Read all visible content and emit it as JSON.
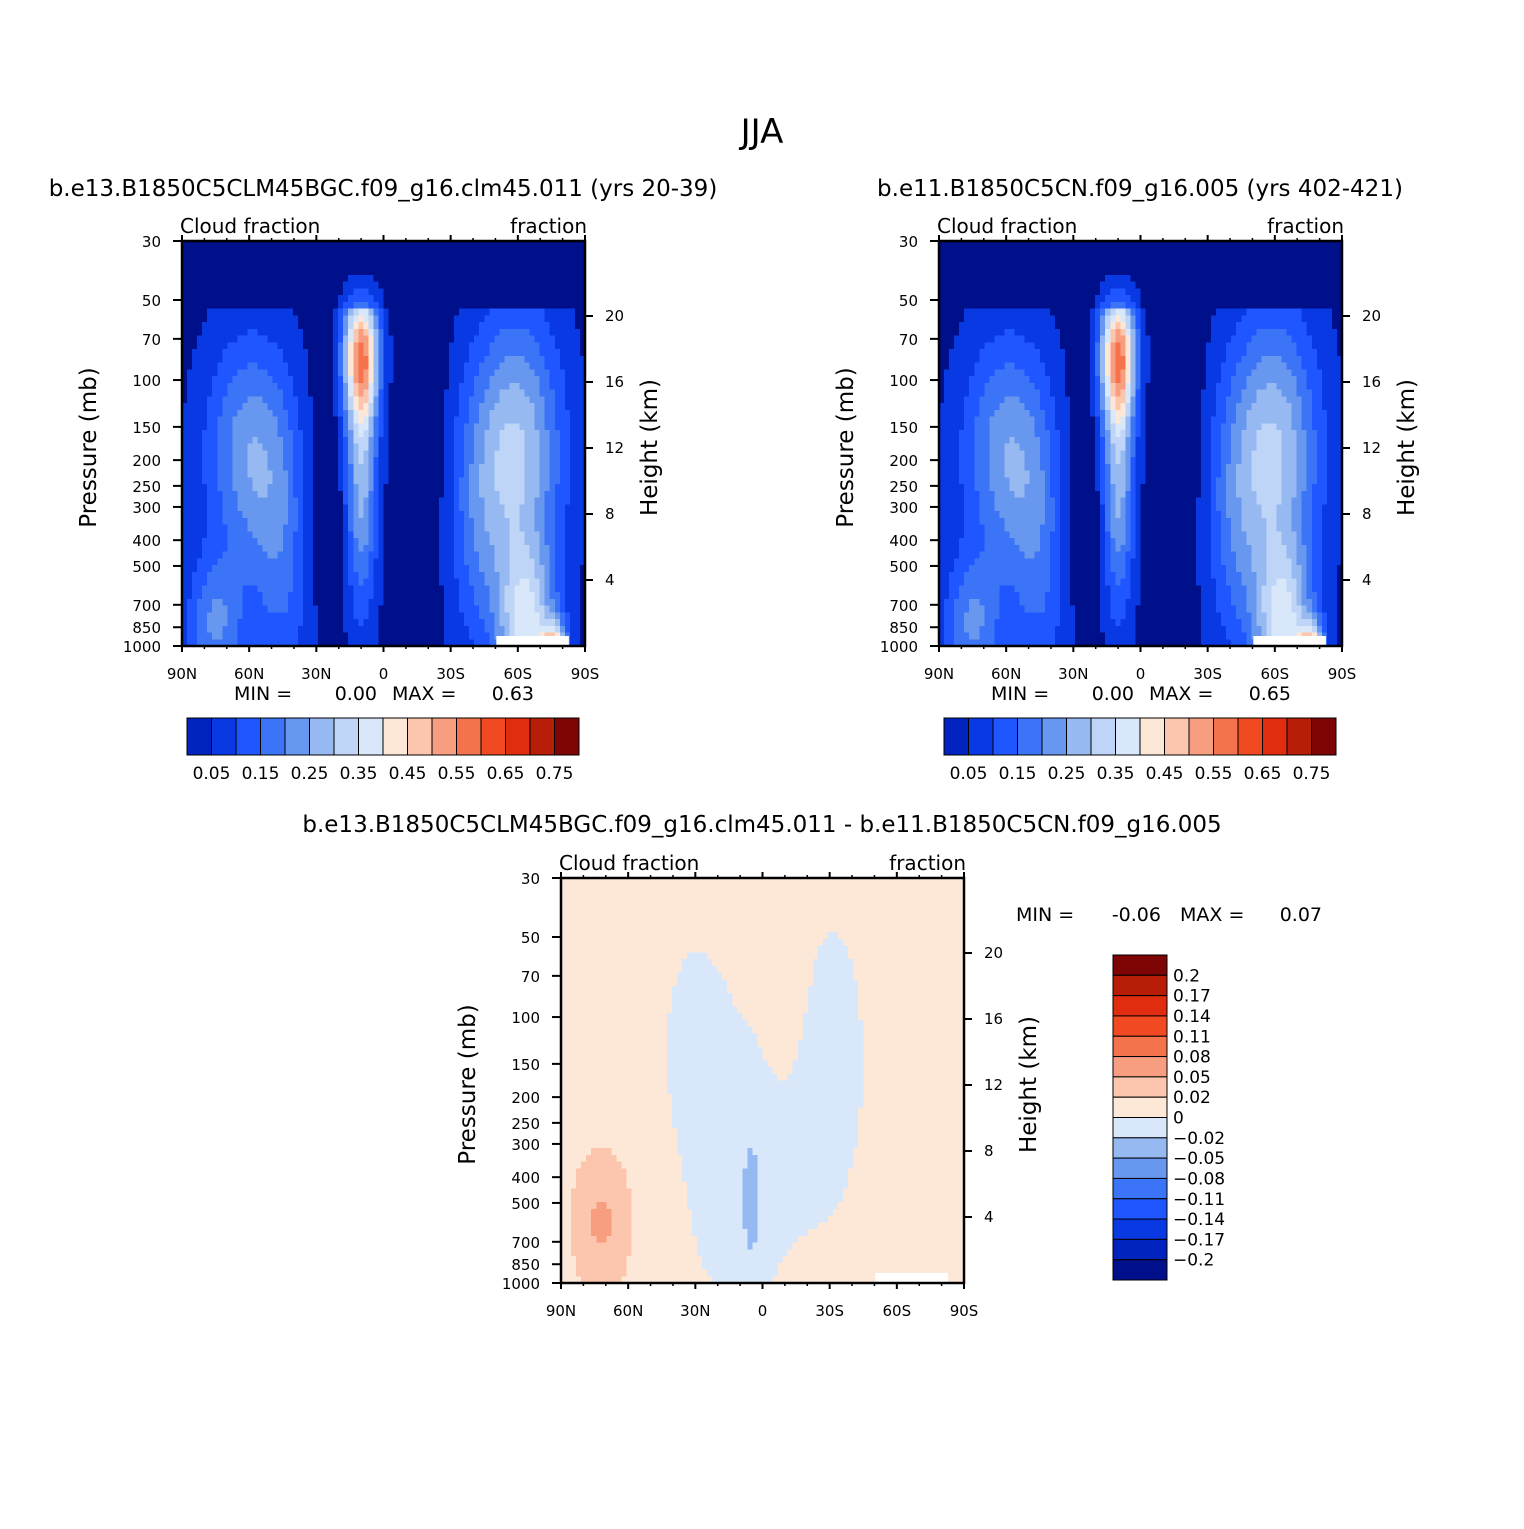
{
  "figure_title": "JJA",
  "colors": {
    "abs_scale": [
      "#000f8a",
      "#0024bd",
      "#0839e3",
      "#1f56ff",
      "#3b74f7",
      "#6897ef",
      "#97b9f2",
      "#bed5f7",
      "#d8e8fa",
      "#fde8d8",
      "#fbc6ad",
      "#f79e80",
      "#f5734c",
      "#f14a22",
      "#e02d0f",
      "#b81d08",
      "#7d0505"
    ],
    "diff_scale": [
      "#000f8a",
      "#0024bd",
      "#0839e3",
      "#1f56ff",
      "#3b74f7",
      "#6897ef",
      "#97b9f2",
      "#d8e8fa",
      "#fde8d8",
      "#fbc6ad",
      "#f79e80",
      "#f5734c",
      "#f14a22",
      "#e02d0f",
      "#b81d08",
      "#7d0505"
    ]
  },
  "chart_data": [
    {
      "type": "heatmap",
      "title": "b.e13.B1850C5CLM45BGC.f09_g16.clm45.011 (yrs 20-39)",
      "left_string": "Cloud  fraction",
      "right_string": "fraction",
      "ylabel": "Pressure  (mb)",
      "y2label": "Height  (km)",
      "x_ticks": [
        "90N",
        "60N",
        "30N",
        "0",
        "30S",
        "60S",
        "90S"
      ],
      "y_ticks": [
        "30",
        "50",
        "70",
        "100",
        "150",
        "200",
        "250",
        "300",
        "400",
        "500",
        "700",
        "850",
        "1000"
      ],
      "y2_ticks": [
        "20",
        "16",
        "12",
        "8",
        "4"
      ],
      "min_label": "MIN  =",
      "min_value": "0.00",
      "max_label": "MAX  =",
      "max_value": "0.63",
      "colorbar_labels": [
        "0.05",
        "0.15",
        "0.25",
        "0.35",
        "0.45",
        "0.55",
        "0.65",
        "0.75"
      ]
    },
    {
      "type": "heatmap",
      "title": "b.e11.B1850C5CN.f09_g16.005 (yrs 402-421)",
      "left_string": "Cloud  fraction",
      "right_string": "fraction",
      "ylabel": "Pressure  (mb)",
      "y2label": "Height  (km)",
      "x_ticks": [
        "90N",
        "60N",
        "30N",
        "0",
        "30S",
        "60S",
        "90S"
      ],
      "y_ticks": [
        "30",
        "50",
        "70",
        "100",
        "150",
        "200",
        "250",
        "300",
        "400",
        "500",
        "700",
        "850",
        "1000"
      ],
      "y2_ticks": [
        "20",
        "16",
        "12",
        "8",
        "4"
      ],
      "min_label": "MIN  =",
      "min_value": "0.00",
      "max_label": "MAX  =",
      "max_value": "0.65",
      "colorbar_labels": [
        "0.05",
        "0.15",
        "0.25",
        "0.35",
        "0.45",
        "0.55",
        "0.65",
        "0.75"
      ]
    },
    {
      "type": "heatmap",
      "title": "b.e13.B1850C5CLM45BGC.f09_g16.clm45.011 - b.e11.B1850C5CN.f09_g16.005",
      "left_string": "Cloud  fraction",
      "right_string": "fraction",
      "ylabel": "Pressure  (mb)",
      "y2label": "Height  (km)",
      "x_ticks": [
        "90N",
        "60N",
        "30N",
        "0",
        "30S",
        "60S",
        "90S"
      ],
      "y_ticks": [
        "30",
        "50",
        "70",
        "100",
        "150",
        "200",
        "250",
        "300",
        "400",
        "500",
        "700",
        "850",
        "1000"
      ],
      "y2_ticks": [
        "20",
        "16",
        "12",
        "8",
        "4"
      ],
      "min_label": "MIN  =",
      "min_value": "-0.06",
      "max_label": "MAX  =",
      "max_value": "0.07",
      "colorbar_labels": [
        "0.2",
        "0.17",
        "0.14",
        "0.11",
        "0.08",
        "0.05",
        "0.02",
        "0",
        "-0.02",
        "-0.05",
        "-0.08",
        "-0.11",
        "-0.14",
        "-0.17",
        "-0.2"
      ]
    }
  ]
}
